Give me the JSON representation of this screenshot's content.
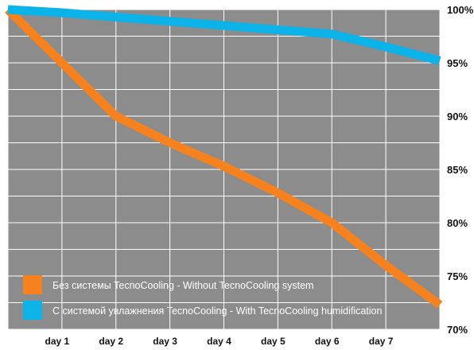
{
  "chart_data": {
    "type": "line",
    "title": "",
    "xlabel": "",
    "ylabel": "",
    "categories": [
      "",
      "day 1",
      "day 2",
      "day 3",
      "day 4",
      "day 5",
      "day 6",
      "day 7",
      ""
    ],
    "x_tick_labels": [
      "day 1",
      "day 2",
      "day 3",
      "day 4",
      "day 5",
      "day 6",
      "day 7"
    ],
    "y_tick_labels": [
      "100%",
      "95%",
      "90%",
      "85%",
      "80%",
      "75%",
      "70%"
    ],
    "y_ticks": [
      100,
      95,
      90,
      85,
      80,
      75,
      70
    ],
    "ylim": [
      70,
      100
    ],
    "xlim": [
      0,
      8
    ],
    "grid": true,
    "legend_position": "bottom-left",
    "plot_background": "#8c8c8c",
    "grid_color": "#ffffff",
    "series": [
      {
        "name": "Без системы TecnoCooling - Without TecnoCooling system",
        "color": "#f5821f",
        "x": [
          0,
          1,
          2,
          3,
          4,
          5,
          6,
          7,
          8
        ],
        "values": [
          100,
          95,
          90,
          87.5,
          85.3,
          82.8,
          80,
          76,
          72.3
        ]
      },
      {
        "name": "С системой увлажнения TecnoCooling - With TecnoCooling humidification",
        "color": "#0bb3e8",
        "x": [
          0,
          1,
          2,
          3,
          4,
          5,
          6,
          7,
          8
        ],
        "values": [
          100,
          99.7,
          99.3,
          98.9,
          98.5,
          98.1,
          97.7,
          96.5,
          95.2
        ]
      }
    ]
  }
}
